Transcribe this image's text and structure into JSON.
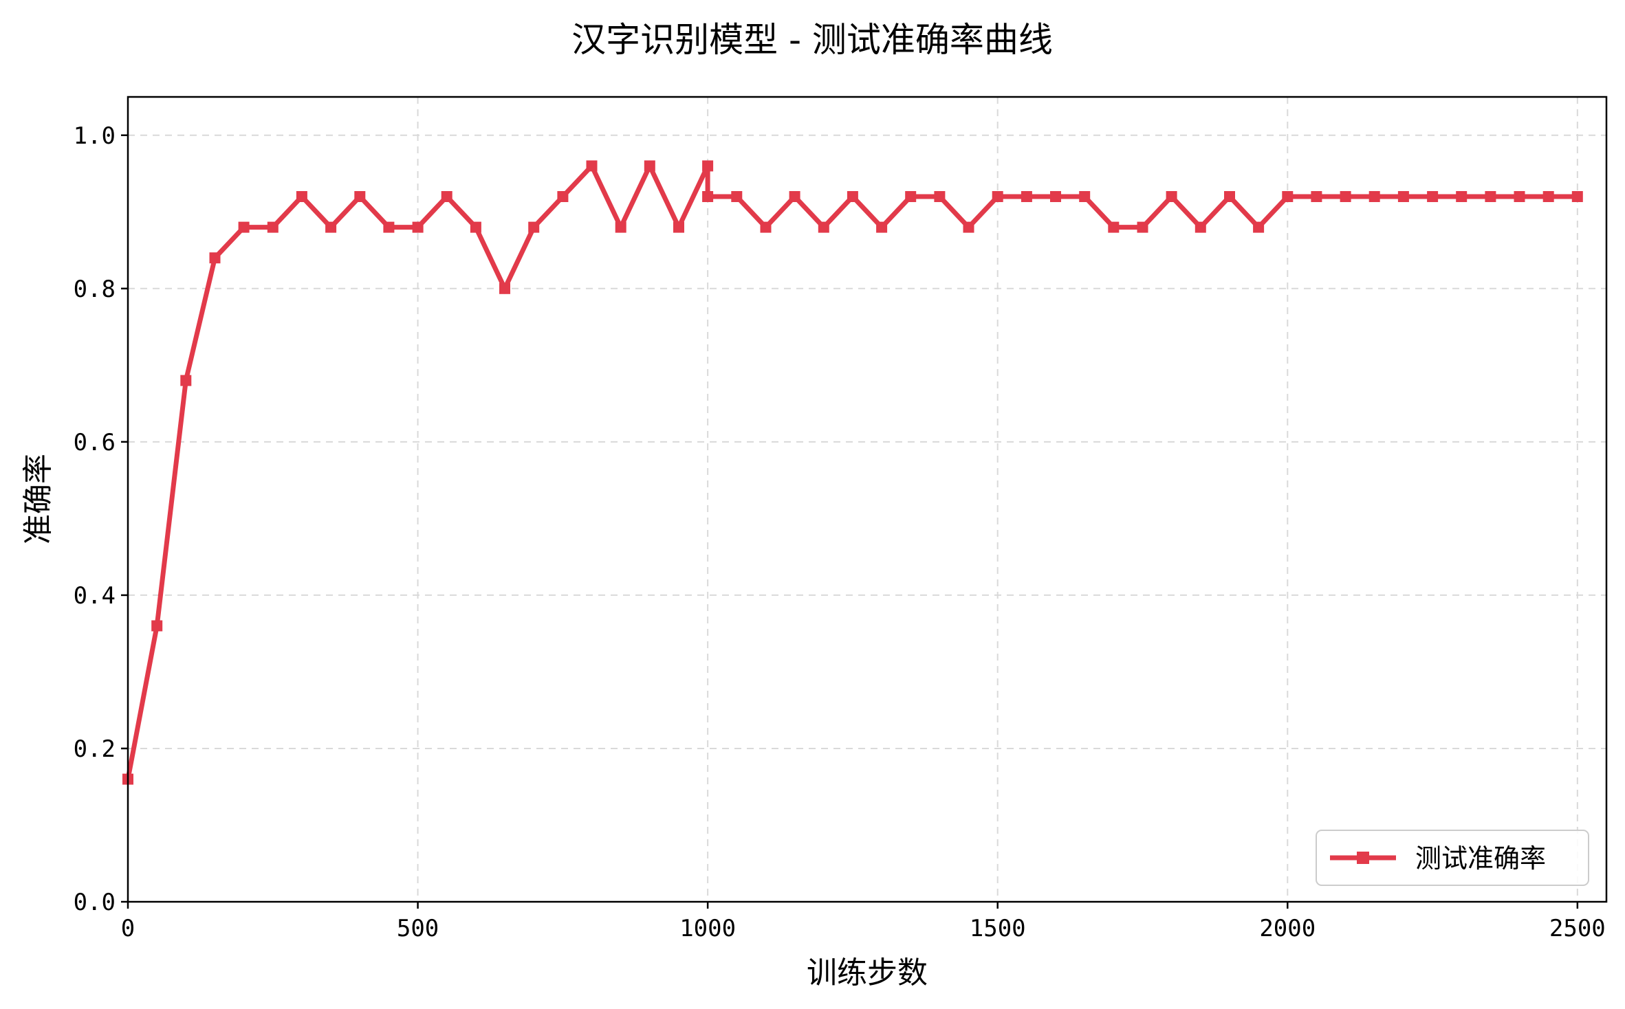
{
  "chart_data": {
    "type": "line",
    "title": "汉字识别模型 - 测试准确率曲线",
    "xlabel": "训练步数",
    "ylabel": "准确率",
    "xlim": [
      0,
      2550
    ],
    "ylim": [
      0.0,
      1.05
    ],
    "x_ticks": [
      0,
      500,
      1000,
      1500,
      2000,
      2500
    ],
    "y_ticks": [
      0.0,
      0.2,
      0.4,
      0.6,
      0.8,
      1.0
    ],
    "x_tick_labels": [
      "0",
      "500",
      "1000",
      "1500",
      "2000",
      "2500"
    ],
    "y_tick_labels": [
      "0.0",
      "0.2",
      "0.4",
      "0.6",
      "0.8",
      "1.0"
    ],
    "grid": true,
    "legend_position": "bottom-right",
    "series": [
      {
        "name": "测试准确率",
        "color": "#e23a4a",
        "marker": "square",
        "x": [
          0,
          50,
          100,
          150,
          200,
          250,
          300,
          350,
          400,
          450,
          500,
          550,
          600,
          650,
          700,
          750,
          800,
          850,
          900,
          950,
          1000,
          1000,
          1050,
          1100,
          1150,
          1200,
          1250,
          1300,
          1350,
          1400,
          1450,
          1500,
          1550,
          1600,
          1650,
          1700,
          1750,
          1800,
          1850,
          1900,
          1950,
          2000,
          2050,
          2100,
          2150,
          2200,
          2250,
          2300,
          2350,
          2400,
          2450,
          2500
        ],
        "y": [
          0.16,
          0.36,
          0.68,
          0.84,
          0.88,
          0.88,
          0.92,
          0.88,
          0.92,
          0.88,
          0.88,
          0.92,
          0.88,
          0.8,
          0.88,
          0.92,
          0.96,
          0.88,
          0.96,
          0.88,
          0.96,
          0.92,
          0.92,
          0.88,
          0.92,
          0.88,
          0.92,
          0.88,
          0.92,
          0.92,
          0.88,
          0.92,
          0.92,
          0.92,
          0.92,
          0.88,
          0.88,
          0.92,
          0.88,
          0.92,
          0.88,
          0.92,
          0.92,
          0.92,
          0.92,
          0.92,
          0.92,
          0.92,
          0.92,
          0.92,
          0.92,
          0.92
        ]
      }
    ]
  }
}
